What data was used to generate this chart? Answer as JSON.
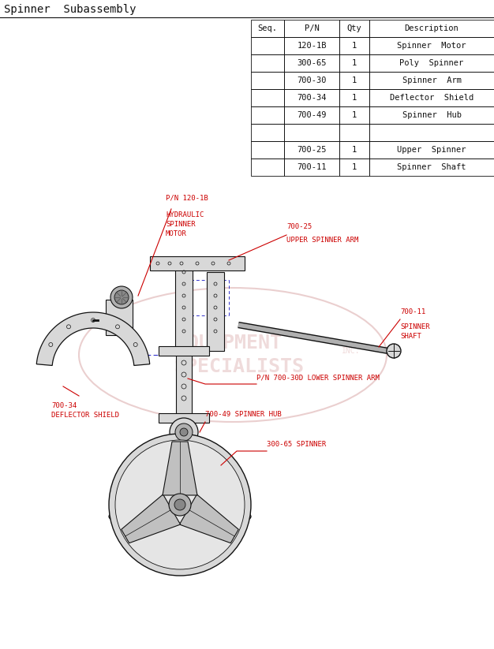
{
  "title": "Spinner  Subassembly",
  "bg_color": "#ffffff",
  "table": {
    "headers": [
      "Seq.",
      "P/N",
      "Qty",
      "Description"
    ],
    "rows": [
      [
        "",
        "120-1B",
        "1",
        "Spinner  Motor"
      ],
      [
        "",
        "300-65",
        "1",
        "Poly  Spinner"
      ],
      [
        "",
        "700-30",
        "1",
        "Spinner  Arm"
      ],
      [
        "",
        "700-34",
        "1",
        "Deflector  Shield"
      ],
      [
        "",
        "700-49",
        "1",
        "Spinner  Hub"
      ],
      [
        "",
        "",
        "",
        ""
      ],
      [
        "",
        "700-25",
        "1",
        "Upper  Spinner"
      ],
      [
        "",
        "700-11",
        "1",
        "Spinner  Shaft"
      ]
    ]
  },
  "red_color": "#cc0000",
  "blue_color": "#3333cc",
  "dark_color": "#111111",
  "gray_light": "#d8d8d8",
  "gray_mid": "#b0b0b0",
  "gray_dark": "#888888",
  "watermark_red": "#cc8888",
  "label_fontsize": 6.5,
  "title_fontsize": 10
}
